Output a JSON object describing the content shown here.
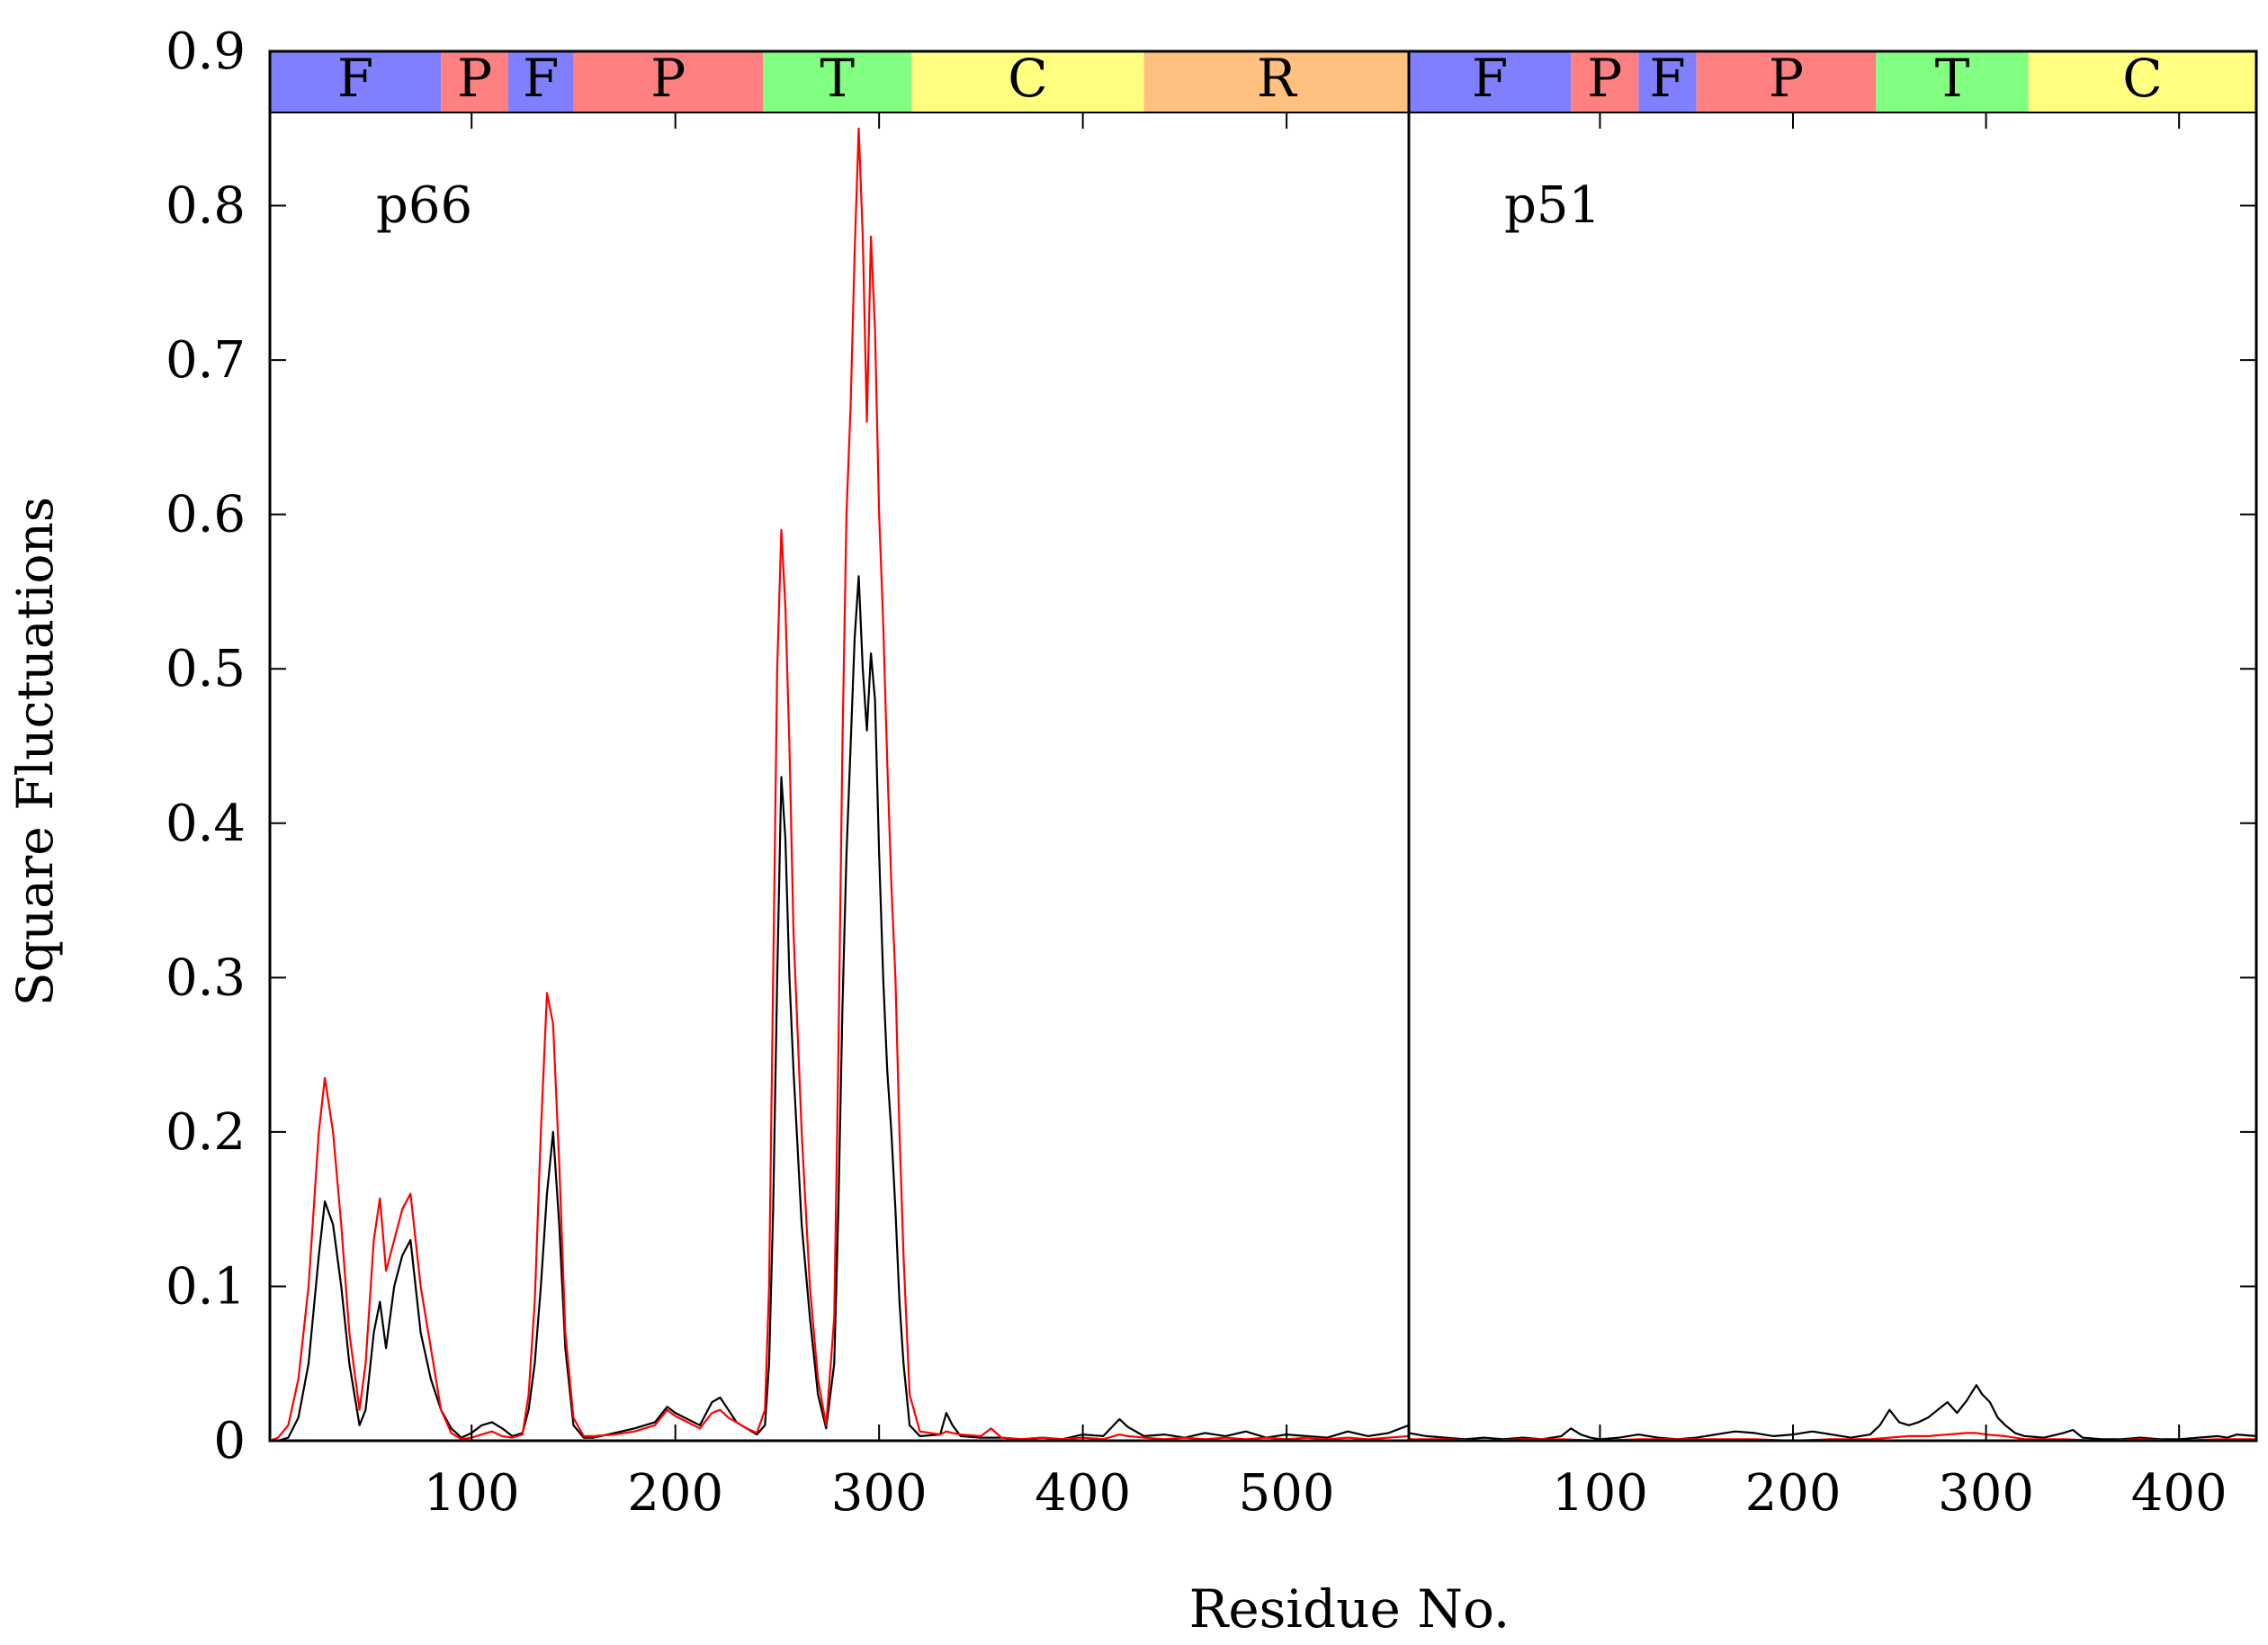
{
  "chart_data": {
    "type": "line",
    "ylabel": "Square Fluctuations",
    "xlabel": "Residue No.",
    "ylim": [
      0,
      0.9
    ],
    "yticks": [
      "0",
      "0.1",
      "0.2",
      "0.3",
      "0.4",
      "0.5",
      "0.6",
      "0.7",
      "0.8",
      "0.9"
    ],
    "colors": {
      "black_series": "#000000",
      "red_series": "#ff0000"
    },
    "panels": [
      {
        "id": "p66",
        "label": "p66",
        "xlim": [
          1,
          560
        ],
        "xticks": [
          100,
          200,
          300,
          400,
          500
        ],
        "domains": [
          {
            "label": "F",
            "start": 1,
            "end": 85,
            "color": "#8080ff"
          },
          {
            "label": "P",
            "start": 85,
            "end": 118,
            "color": "#ff8080"
          },
          {
            "label": "F",
            "start": 118,
            "end": 150,
            "color": "#8080ff"
          },
          {
            "label": "P",
            "start": 150,
            "end": 243,
            "color": "#ff8080"
          },
          {
            "label": "T",
            "start": 243,
            "end": 316,
            "color": "#80ff80"
          },
          {
            "label": "C",
            "start": 316,
            "end": 430,
            "color": "#ffff80"
          },
          {
            "label": "R",
            "start": 430,
            "end": 560,
            "color": "#ffc080"
          }
        ],
        "series": [
          {
            "color": "black",
            "x": [
              1,
              5,
              10,
              15,
              20,
              25,
              28,
              32,
              36,
              40,
              45,
              48,
              52,
              55,
              58,
              62,
              66,
              70,
              75,
              80,
              85,
              90,
              95,
              100,
              105,
              110,
              115,
              120,
              125,
              128,
              131,
              134,
              137,
              140,
              143,
              146,
              150,
              155,
              160,
              170,
              180,
              190,
              196,
              200,
              206,
              212,
              218,
              222,
              226,
              230,
              235,
              240,
              244,
              246,
              248,
              250,
              252,
              254,
              256,
              258,
              262,
              266,
              270,
              274,
              278,
              280,
              282,
              284,
              286,
              288,
              290,
              292,
              294,
              296,
              298,
              300,
              302,
              304,
              306,
              308,
              310,
              312,
              315,
              320,
              330,
              333,
              336,
              340,
              350,
              360,
              370,
              380,
              390,
              400,
              410,
              418,
              422,
              430,
              440,
              450,
              460,
              470,
              480,
              490,
              500,
              510,
              520,
              530,
              540,
              550,
              560
            ],
            "y": [
              0,
              0,
              0.002,
              0.015,
              0.05,
              0.12,
              0.155,
              0.14,
              0.1,
              0.05,
              0.01,
              0.02,
              0.07,
              0.09,
              0.06,
              0.1,
              0.12,
              0.13,
              0.07,
              0.04,
              0.02,
              0.008,
              0.002,
              0.005,
              0.01,
              0.012,
              0.008,
              0.003,
              0.005,
              0.02,
              0.05,
              0.1,
              0.16,
              0.2,
              0.14,
              0.06,
              0.01,
              0.002,
              0.002,
              0.005,
              0.008,
              0.012,
              0.022,
              0.018,
              0.014,
              0.01,
              0.025,
              0.028,
              0.02,
              0.012,
              0.008,
              0.004,
              0.01,
              0.05,
              0.15,
              0.3,
              0.43,
              0.39,
              0.3,
              0.24,
              0.14,
              0.08,
              0.03,
              0.008,
              0.05,
              0.15,
              0.28,
              0.38,
              0.45,
              0.52,
              0.56,
              0.5,
              0.46,
              0.51,
              0.48,
              0.38,
              0.3,
              0.24,
              0.2,
              0.15,
              0.09,
              0.05,
              0.01,
              0.003,
              0.004,
              0.018,
              0.01,
              0.003,
              0.002,
              0.002,
              0.001,
              0.002,
              0.001,
              0.004,
              0.003,
              0.014,
              0.009,
              0.003,
              0.004,
              0.002,
              0.005,
              0.003,
              0.006,
              0.002,
              0.004,
              0.003,
              0.002,
              0.006,
              0.003,
              0.005,
              0.01
            ]
          },
          {
            "color": "red",
            "x": [
              1,
              5,
              10,
              15,
              20,
              25,
              28,
              32,
              36,
              40,
              45,
              48,
              52,
              55,
              58,
              62,
              66,
              70,
              75,
              80,
              85,
              90,
              95,
              100,
              105,
              110,
              115,
              120,
              125,
              128,
              131,
              134,
              137,
              140,
              143,
              146,
              150,
              155,
              160,
              170,
              180,
              190,
              196,
              200,
              206,
              212,
              218,
              222,
              226,
              230,
              235,
              240,
              244,
              246,
              248,
              250,
              252,
              254,
              256,
              258,
              262,
              266,
              270,
              274,
              278,
              280,
              282,
              284,
              286,
              288,
              290,
              292,
              294,
              296,
              298,
              300,
              302,
              304,
              306,
              308,
              310,
              312,
              315,
              320,
              330,
              333,
              336,
              340,
              350,
              355,
              360,
              370,
              380,
              390,
              400,
              410,
              418,
              422,
              430,
              440,
              450,
              460,
              470,
              480,
              490,
              500,
              510,
              520,
              530,
              540,
              550,
              560
            ],
            "y": [
              0,
              0.002,
              0.01,
              0.04,
              0.1,
              0.2,
              0.235,
              0.2,
              0.14,
              0.07,
              0.02,
              0.05,
              0.13,
              0.157,
              0.11,
              0.13,
              0.15,
              0.16,
              0.1,
              0.06,
              0.02,
              0.005,
              0.001,
              0.002,
              0.004,
              0.006,
              0.003,
              0.002,
              0.004,
              0.03,
              0.09,
              0.2,
              0.29,
              0.27,
              0.18,
              0.07,
              0.015,
              0.003,
              0.003,
              0.004,
              0.006,
              0.01,
              0.02,
              0.016,
              0.012,
              0.008,
              0.018,
              0.02,
              0.015,
              0.012,
              0.008,
              0.005,
              0.02,
              0.1,
              0.3,
              0.5,
              0.59,
              0.54,
              0.45,
              0.33,
              0.2,
              0.1,
              0.04,
              0.01,
              0.08,
              0.25,
              0.45,
              0.6,
              0.67,
              0.77,
              0.85,
              0.78,
              0.66,
              0.78,
              0.72,
              0.6,
              0.53,
              0.44,
              0.36,
              0.3,
              0.2,
              0.12,
              0.03,
              0.006,
              0.004,
              0.006,
              0.005,
              0.004,
              0.003,
              0.008,
              0.002,
              0.001,
              0.002,
              0.001,
              0.002,
              0.001,
              0.004,
              0.003,
              0.002,
              0.001,
              0.002,
              0.001,
              0.002,
              0.001,
              0.002,
              0.001,
              0.002,
              0.001,
              0.002,
              0.001,
              0.002,
              0.003
            ]
          }
        ]
      },
      {
        "id": "p51",
        "label": "p51",
        "xlim": [
          1,
          440
        ],
        "xticks": [
          100,
          200,
          300,
          400
        ],
        "domains": [
          {
            "label": "F",
            "start": 1,
            "end": 85,
            "color": "#8080ff"
          },
          {
            "label": "P",
            "start": 85,
            "end": 120,
            "color": "#ff8080"
          },
          {
            "label": "F",
            "start": 120,
            "end": 150,
            "color": "#8080ff"
          },
          {
            "label": "P",
            "start": 150,
            "end": 243,
            "color": "#ff8080"
          },
          {
            "label": "T",
            "start": 243,
            "end": 322,
            "color": "#80ff80"
          },
          {
            "label": "C",
            "start": 322,
            "end": 440,
            "color": "#ffff80"
          }
        ],
        "series": [
          {
            "color": "black",
            "x": [
              1,
              10,
              20,
              30,
              40,
              50,
              60,
              70,
              80,
              85,
              90,
              95,
              100,
              110,
              120,
              130,
              140,
              150,
              160,
              170,
              180,
              190,
              200,
              210,
              220,
              230,
              240,
              245,
              250,
              255,
              260,
              265,
              270,
              275,
              280,
              285,
              290,
              295,
              298,
              302,
              306,
              310,
              315,
              320,
              330,
              340,
              345,
              350,
              360,
              370,
              380,
              390,
              400,
              410,
              420,
              425,
              430,
              440
            ],
            "y": [
              0.005,
              0.003,
              0.002,
              0.001,
              0.002,
              0.001,
              0.002,
              0.001,
              0.003,
              0.008,
              0.004,
              0.002,
              0.001,
              0.002,
              0.004,
              0.002,
              0.001,
              0.002,
              0.004,
              0.006,
              0.005,
              0.003,
              0.004,
              0.006,
              0.004,
              0.002,
              0.004,
              0.01,
              0.02,
              0.012,
              0.01,
              0.012,
              0.015,
              0.02,
              0.025,
              0.018,
              0.026,
              0.036,
              0.03,
              0.025,
              0.015,
              0.01,
              0.005,
              0.003,
              0.002,
              0.005,
              0.007,
              0.002,
              0.001,
              0.001,
              0.002,
              0.001,
              0.001,
              0.002,
              0.003,
              0.002,
              0.004,
              0.003
            ]
          },
          {
            "color": "red",
            "x": [
              1,
              20,
              40,
              60,
              80,
              100,
              120,
              140,
              160,
              180,
              200,
              220,
              240,
              250,
              260,
              270,
              280,
              290,
              295,
              300,
              310,
              320,
              340,
              360,
              380,
              400,
              420,
              440
            ],
            "y": [
              0.001,
              0.001,
              0,
              0.001,
              0.001,
              0,
              0.001,
              0.001,
              0.001,
              0.001,
              0,
              0.001,
              0.001,
              0.002,
              0.003,
              0.003,
              0.004,
              0.005,
              0.005,
              0.004,
              0.003,
              0.001,
              0.001,
              0,
              0.001,
              0,
              0.001,
              0.001
            ]
          }
        ]
      }
    ]
  }
}
